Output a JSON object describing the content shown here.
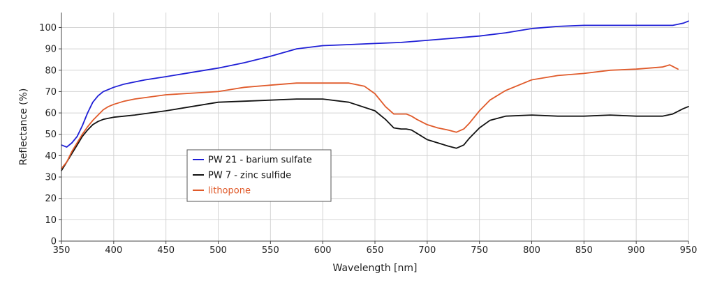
{
  "chart_data": {
    "type": "line",
    "title": "",
    "xlabel": "Wavelength [nm]",
    "ylabel": "Reflectance (%)",
    "xlim": [
      350,
      950
    ],
    "ylim": [
      0,
      107
    ],
    "xticks": [
      350,
      400,
      450,
      500,
      550,
      600,
      650,
      700,
      750,
      800,
      850,
      900,
      950
    ],
    "yticks": [
      0,
      10,
      20,
      30,
      40,
      50,
      60,
      70,
      80,
      90,
      100
    ],
    "grid": true,
    "legend_position": "inside-left",
    "series": [
      {
        "name": "PW 21 - barium sulfate",
        "color": "#1f1fd6",
        "x": [
          350,
          355,
          360,
          365,
          370,
          375,
          380,
          385,
          390,
          395,
          400,
          410,
          420,
          430,
          450,
          475,
          500,
          525,
          550,
          575,
          600,
          625,
          650,
          675,
          700,
          725,
          750,
          775,
          800,
          825,
          850,
          875,
          900,
          925,
          935,
          945,
          950
        ],
        "y": [
          45,
          44,
          46,
          49,
          54,
          60,
          65,
          68,
          70,
          71,
          72,
          73.5,
          74.5,
          75.5,
          77,
          79,
          81,
          83.5,
          86.5,
          90,
          91.5,
          92,
          92.5,
          93,
          94,
          95,
          96,
          97.5,
          99.5,
          100.5,
          101,
          101,
          101,
          101,
          101,
          102,
          103
        ]
      },
      {
        "name": "PW 7 - zinc sulfide",
        "color": "#111111",
        "x": [
          350,
          355,
          360,
          365,
          370,
          375,
          380,
          385,
          390,
          395,
          400,
          410,
          420,
          450,
          500,
          550,
          575,
          600,
          625,
          650,
          660,
          668,
          675,
          680,
          685,
          690,
          700,
          710,
          720,
          728,
          735,
          740,
          750,
          760,
          775,
          800,
          825,
          850,
          875,
          900,
          925,
          935,
          945,
          950
        ],
        "y": [
          33,
          37,
          41,
          45,
          49,
          52,
          54.5,
          56,
          57,
          57.5,
          58,
          58.5,
          59,
          61,
          65,
          66,
          66.5,
          66.5,
          65,
          61,
          57,
          53,
          52.5,
          52.5,
          52,
          50.5,
          47.5,
          46,
          44.5,
          43.5,
          45,
          48,
          53,
          56.5,
          58.5,
          59,
          58.5,
          58.5,
          59,
          58.5,
          58.5,
          59.5,
          62,
          63
        ]
      },
      {
        "name": "lithopone",
        "color": "#e05a2a",
        "x": [
          350,
          355,
          360,
          365,
          370,
          375,
          380,
          385,
          390,
          395,
          400,
          410,
          420,
          450,
          500,
          525,
          550,
          575,
          600,
          625,
          640,
          650,
          660,
          668,
          675,
          680,
          685,
          690,
          700,
          710,
          720,
          728,
          735,
          740,
          750,
          760,
          775,
          800,
          825,
          850,
          875,
          900,
          925,
          932,
          938,
          940
        ],
        "y": [
          34,
          37,
          42,
          46,
          50,
          53.5,
          56.5,
          59,
          61.5,
          63,
          64,
          65.5,
          66.5,
          68.5,
          70,
          72,
          73,
          74,
          74,
          74,
          72.5,
          69,
          63,
          59.5,
          59.5,
          59.5,
          58.5,
          57,
          54.5,
          53,
          52,
          51,
          52.5,
          55,
          61,
          66,
          70.5,
          75.5,
          77.5,
          78.5,
          80,
          80.5,
          81.5,
          82.5,
          81,
          80.5
        ]
      }
    ]
  }
}
